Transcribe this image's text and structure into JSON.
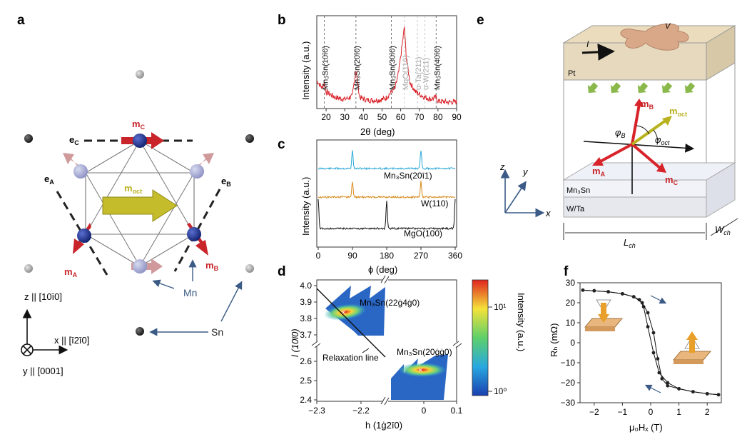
{
  "panel_labels": {
    "a": "a",
    "b": "b",
    "c": "c",
    "d": "d",
    "e": "e",
    "f": "f"
  },
  "colors": {
    "xrd_red": "#d8232a",
    "mn_blue": "#1c2f8a",
    "mn_light": "#9aa0cf",
    "sn_gray": "#9a9a9a",
    "moct_yellow": "#b8b21e",
    "arrow_red": "#c8242a",
    "arrow_pink": "#c58d8f",
    "trace_cyan": "#2aa6d6",
    "trace_orange": "#d68a1c",
    "trace_black": "#111111",
    "annot_blue": "#3b5b86"
  },
  "panel_a": {
    "labels": {
      "m_C": "m",
      "m_C_sub": "C",
      "m_A": "m",
      "m_A_sub": "A",
      "m_B": "m",
      "m_B_sub": "B",
      "m_oct": "m",
      "m_oct_sub": "oct",
      "e_C": "e",
      "e_C_sub": "C",
      "e_A": "e",
      "e_A_sub": "A",
      "e_B": "e",
      "e_B_sub": "B",
      "mn": "Mn",
      "sn": "Sn"
    },
    "axes": {
      "z": "z || [10ī0]",
      "x": "x || [ī2ī0]",
      "y": "y || [0001]"
    }
  },
  "panel_b": {
    "ylabel": "Intensity (a.u.)",
    "xlabel": "2θ (deg)",
    "peak_labels": [
      {
        "text": "Mn₃Sn(10ī0)",
        "x": 19,
        "style": "dark"
      },
      {
        "text": "Mn₃Sn(20ī0)",
        "x": 36,
        "style": "dark"
      },
      {
        "text": "Mn₃Sn(30ī0)",
        "x": 55,
        "style": "dark"
      },
      {
        "text": "MgO(110)",
        "x": 62,
        "style": "faint"
      },
      {
        "text": "α-Ta(211)",
        "x": 69,
        "style": "faint"
      },
      {
        "text": "α-W(211)",
        "x": 73,
        "style": "faint"
      },
      {
        "text": "Mn₃Sn(40ī0)",
        "x": 79,
        "style": "dark"
      }
    ]
  },
  "panel_c": {
    "ylabel": "Intensity (a.u.)",
    "xlabel": "ϕ (deg)",
    "trace_labels": [
      "Mn₃Sn(20ī1)",
      "W(110)",
      "MgO(100)"
    ]
  },
  "panel_d": {
    "ylabel": "l (10ī0)",
    "xlabel": "h (1ġ2ī0)",
    "spot_labels": [
      "Mn₃Sn(22ġ4ġ0)",
      "Mn₃Sn(20ġġ0)"
    ],
    "relaxation": "Relaxation line",
    "colorbar_label": "Intensity (a.u.)",
    "colorbar_ticks": [
      "10¹",
      "10⁰"
    ]
  },
  "panel_e": {
    "labels": {
      "V": "V",
      "I": "I",
      "Pt": "Pt",
      "Mn3Sn": "Mn₃Sn",
      "WTa": "W/Ta",
      "mB": "m",
      "mB_sub": "B",
      "moct": "m",
      "moct_sub": "oct",
      "mA": "m",
      "mA_sub": "A",
      "mC": "m",
      "mC_sub": "C",
      "phiB": "φ",
      "phiB_sub": "B",
      "phioct": "φ",
      "phioct_sub": "oct",
      "Lch": "L",
      "Lch_sub": "ch",
      "Wch": "W",
      "Wch_sub": "ch"
    },
    "axes": {
      "z": "z",
      "y": "y",
      "x": "x"
    }
  },
  "panel_f": {
    "ylabel": "Rₕ (mΩ)",
    "xlabel": "μ₀Hₓ (T)"
  },
  "chart_data": [
    {
      "panel": "b",
      "type": "line",
      "xlabel": "2θ (deg)",
      "ylabel": "Intensity (a.u.)",
      "xlim": [
        15,
        90
      ],
      "x_ticks": [
        20,
        30,
        40,
        50,
        60,
        70,
        80,
        90
      ],
      "peaks_deg": [
        19,
        36,
        55,
        62,
        79
      ],
      "series": [
        {
          "values_desc": "noisy XRD trace",
          "x": [
            15,
            18,
            19,
            20,
            25,
            30,
            34,
            36,
            38,
            42,
            48,
            52,
            55,
            57,
            59,
            61,
            62,
            63,
            65,
            68,
            72,
            76,
            79,
            80,
            85,
            90
          ],
          "y": [
            0.3,
            0.22,
            0.28,
            0.18,
            0.12,
            0.1,
            0.13,
            0.42,
            0.12,
            0.09,
            0.09,
            0.11,
            0.18,
            0.22,
            0.4,
            0.72,
            0.88,
            0.55,
            0.28,
            0.18,
            0.13,
            0.1,
            0.12,
            0.08,
            0.07,
            0.07
          ]
        }
      ]
    },
    {
      "panel": "c",
      "type": "line",
      "xlabel": "ϕ (deg)",
      "ylabel": "Intensity (a.u.)",
      "xlim": [
        0,
        360
      ],
      "x_ticks": [
        0,
        90,
        180,
        270,
        360
      ],
      "series": [
        {
          "name": "Mn₃Sn(20ī1)",
          "peaks_deg": [
            90,
            270
          ]
        },
        {
          "name": "W(110)",
          "peaks_deg": [
            90,
            270
          ]
        },
        {
          "name": "MgO(100)",
          "peaks_deg": [
            0,
            180,
            360
          ]
        }
      ]
    },
    {
      "panel": "d",
      "type": "heatmap",
      "xlabel": "h (1ġ2ī0)",
      "ylabel": "l (10ī0)",
      "x_ticks_left": [
        -2.3,
        -2.2
      ],
      "x_ticks_right": [
        0,
        0.1
      ],
      "y_ticks_top": [
        4.0,
        3.9,
        3.8,
        3.7
      ],
      "y_ticks_bottom": [
        2.6,
        2.5,
        2.4
      ],
      "spots": [
        {
          "h": -2.2,
          "l": 3.85
        },
        {
          "h": 0.0,
          "l": 2.55
        }
      ]
    },
    {
      "panel": "f",
      "type": "line",
      "xlabel": "μ₀Hₓ (T)",
      "ylabel": "Rₕ (mΩ)",
      "xlim": [
        -2.5,
        2.5
      ],
      "ylim": [
        -30,
        30
      ],
      "x_ticks": [
        -2,
        -1,
        0,
        1,
        2
      ],
      "y_ticks": [
        -30,
        -20,
        -10,
        0,
        10,
        20,
        30
      ],
      "series": [
        {
          "name": "sweep down",
          "x": [
            2.4,
            2.0,
            1.5,
            1.0,
            0.6,
            0.3,
            0.1,
            -0.1,
            -0.25,
            -0.4,
            -0.6,
            -1.0,
            -1.5,
            -2.0,
            -2.4
          ],
          "y": [
            -26,
            -25.5,
            -24.5,
            -23,
            -20,
            -15,
            -5,
            8,
            18,
            21.5,
            23,
            24.5,
            25.5,
            26,
            26.3
          ]
        },
        {
          "name": "sweep up",
          "x": [
            -2.4,
            -2.0,
            -1.5,
            -1.0,
            -0.6,
            -0.3,
            -0.1,
            0.1,
            0.25,
            0.4,
            0.6,
            1.0,
            1.5,
            2.0,
            2.4
          ],
          "y": [
            26.3,
            26,
            25.5,
            24.5,
            23,
            20,
            15,
            5,
            -8,
            -18,
            -21.5,
            -23,
            -24.5,
            -25.5,
            -26
          ]
        }
      ]
    }
  ]
}
